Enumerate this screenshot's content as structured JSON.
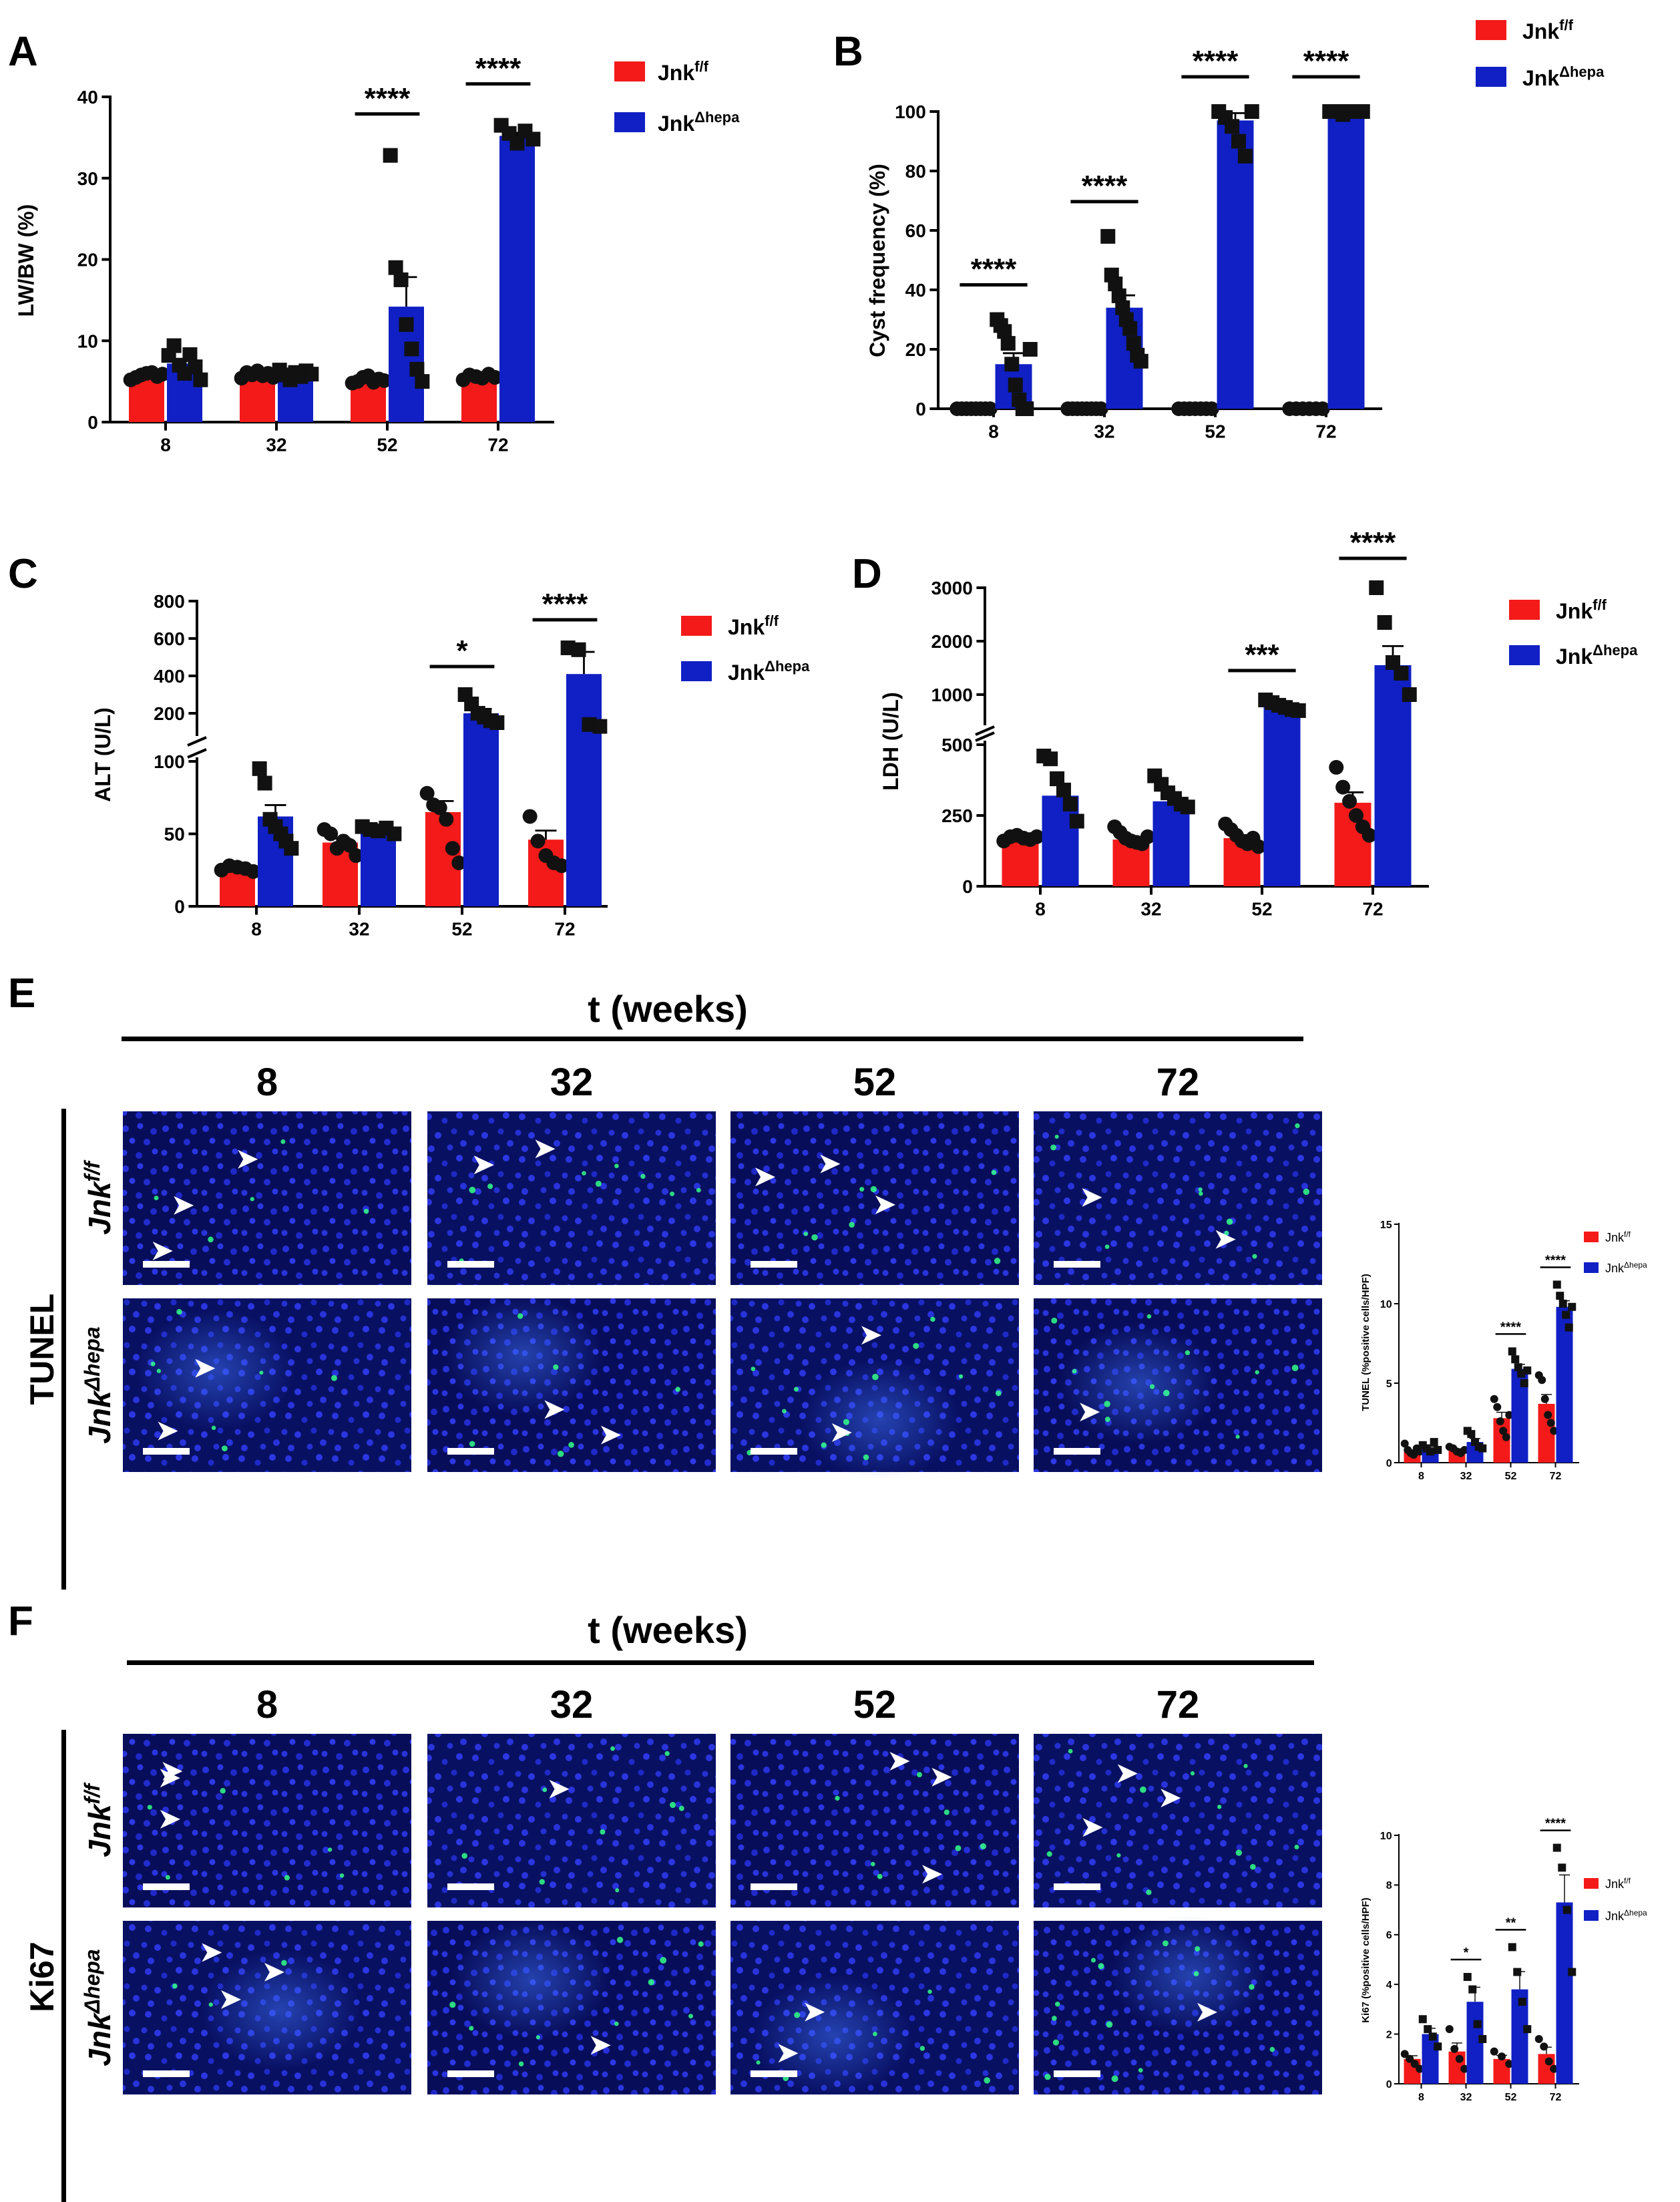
{
  "legend": {
    "control": "Jnk",
    "control_sup": "f/f",
    "mutant": "Jnk",
    "mutant_sup": "Δhepa"
  },
  "colors": {
    "control": "#f41a1a",
    "mutant": "#1020c4",
    "nuclei": "#1a1fd6",
    "positive": "#33ff88",
    "arrow": "#ffffff",
    "bar_scale": "#ffffff"
  },
  "chart_data": [
    {
      "panel": "A",
      "type": "bar",
      "ylabel": "LW/BW (%)",
      "xlabel": "",
      "categories": [
        "8",
        "32",
        "52",
        "72"
      ],
      "ylim": [
        0,
        40
      ],
      "yticks": [
        0,
        10,
        20,
        30,
        40
      ],
      "series": [
        {
          "name": "Jnk f/f",
          "values": [
            5.8,
            5.9,
            5.3,
            5.6
          ]
        },
        {
          "name": "Jnk Δhepa",
          "values": [
            7.2,
            5.9,
            14.2,
            35.2
          ]
        }
      ],
      "points": [
        [
          [
            5.2,
            5.5,
            5.8,
            6.0,
            6.1,
            5.6,
            5.9
          ],
          [
            8.2,
            9.4,
            7.0,
            6.0,
            8.3,
            6.8,
            5.2
          ]
        ],
        [
          [
            5.4,
            6.1,
            5.8,
            6.3,
            5.7,
            6.0,
            5.5
          ],
          [
            6.4,
            5.8,
            5.2,
            6.1,
            5.6,
            6.3,
            5.9
          ]
        ],
        [
          [
            4.8,
            5.0,
            5.5,
            5.7,
            4.9,
            5.3,
            5.1
          ],
          [
            32.8,
            19.0,
            17.5,
            12.0,
            9.0,
            6.5,
            5.0
          ]
        ],
        [
          [
            5.2,
            5.8,
            5.6,
            5.4,
            5.9,
            5.5
          ],
          [
            36.5,
            35.5,
            34.3,
            35.8,
            34.8
          ]
        ]
      ],
      "significance": [
        {
          "category": "52",
          "label": "****"
        },
        {
          "category": "72",
          "label": "****"
        }
      ]
    },
    {
      "panel": "B",
      "type": "bar",
      "ylabel": "Cyst frequency (%)",
      "xlabel": "",
      "categories": [
        "8",
        "32",
        "52",
        "72"
      ],
      "ylim": [
        0,
        100
      ],
      "yticks": [
        0,
        20,
        40,
        60,
        80,
        100
      ],
      "series": [
        {
          "name": "Jnk f/f",
          "values": [
            0,
            0,
            0,
            0
          ]
        },
        {
          "name": "Jnk Δhepa",
          "values": [
            15,
            34,
            97,
            99.5
          ]
        }
      ],
      "points": [
        [
          [
            0,
            0,
            0,
            0,
            0,
            0,
            0,
            0
          ],
          [
            30,
            28,
            26,
            22,
            15,
            8,
            3,
            0,
            0,
            20
          ]
        ],
        [
          [
            0,
            0,
            0,
            0,
            0,
            0,
            0,
            0
          ],
          [
            58,
            45,
            42,
            38,
            34,
            30,
            27,
            22,
            18,
            16
          ]
        ],
        [
          [
            0,
            0,
            0,
            0,
            0,
            0,
            0
          ],
          [
            100,
            98,
            95,
            90,
            85,
            100
          ]
        ],
        [
          [
            0,
            0,
            0,
            0,
            0,
            0
          ],
          [
            100,
            100,
            99,
            100,
            100,
            100
          ]
        ]
      ],
      "significance": [
        {
          "category": "8",
          "label": "****"
        },
        {
          "category": "32",
          "label": "****"
        },
        {
          "category": "52",
          "label": "****"
        },
        {
          "category": "72",
          "label": "****"
        }
      ]
    },
    {
      "panel": "C",
      "type": "bar",
      "ylabel": "ALT (U/L)",
      "xlabel": "",
      "categories": [
        "8",
        "32",
        "52",
        "72"
      ],
      "ylim_lower": [
        0,
        100
      ],
      "ylim_upper": [
        100,
        800
      ],
      "yticks": [
        0,
        50,
        100,
        200,
        400,
        600,
        800
      ],
      "series": [
        {
          "name": "Jnk f/f",
          "values": [
            26,
            44,
            65,
            46
          ]
        },
        {
          "name": "Jnk Δhepa",
          "values": [
            62,
            53,
            200,
            410
          ]
        }
      ],
      "points": [
        [
          [
            25,
            28,
            27,
            26,
            24
          ],
          [
            95,
            85,
            60,
            55,
            50,
            45,
            40
          ]
        ],
        [
          [
            53,
            50,
            40,
            45,
            42,
            35
          ],
          [
            55,
            53,
            52,
            54,
            50
          ]
        ],
        [
          [
            78,
            70,
            68,
            60,
            40,
            30
          ],
          [
            300,
            250,
            200,
            180,
            160,
            150
          ]
        ],
        [
          [
            62,
            45,
            35,
            30,
            28
          ],
          [
            550,
            540,
            140,
            130
          ]
        ]
      ],
      "significance": [
        {
          "category": "52",
          "label": "*"
        },
        {
          "category": "72",
          "label": "****"
        }
      ]
    },
    {
      "panel": "D",
      "type": "bar",
      "ylabel": "LDH (U/L)",
      "xlabel": "",
      "categories": [
        "8",
        "32",
        "52",
        "72"
      ],
      "ylim_lower": [
        0,
        500
      ],
      "ylim_upper": [
        500,
        3000
      ],
      "yticks": [
        0,
        250,
        500,
        1000,
        2000,
        3000
      ],
      "series": [
        {
          "name": "Jnk f/f",
          "values": [
            170,
            165,
            170,
            295
          ]
        },
        {
          "name": "Jnk Δhepa",
          "values": [
            320,
            300,
            780,
            1550
          ]
        }
      ],
      "points": [
        [
          [
            160,
            175,
            180,
            170,
            165,
            175
          ],
          [
            460,
            450,
            380,
            340,
            290,
            230
          ]
        ],
        [
          [
            210,
            190,
            170,
            160,
            155,
            150,
            175
          ],
          [
            390,
            360,
            330,
            310,
            290,
            280
          ]
        ],
        [
          [
            220,
            200,
            180,
            160,
            150,
            170,
            140
          ],
          [
            900,
            850,
            800,
            760,
            720,
            700
          ]
        ],
        [
          [
            420,
            350,
            300,
            250,
            210,
            180
          ],
          [
            3000,
            2350,
            1600,
            1400,
            1000
          ]
        ]
      ],
      "significance": [
        {
          "category": "52",
          "label": "***"
        },
        {
          "category": "72",
          "label": "****"
        }
      ]
    },
    {
      "panel": "E-quant",
      "type": "bar",
      "ylabel": "TUNEL (%positive cells/HPF)",
      "xlabel": "",
      "categories": [
        "8",
        "32",
        "52",
        "72"
      ],
      "ylim": [
        0,
        15
      ],
      "yticks": [
        0,
        5,
        10,
        15
      ],
      "series": [
        {
          "name": "Jnk f/f",
          "values": [
            0.7,
            0.8,
            2.8,
            3.7
          ]
        },
        {
          "name": "Jnk Δhepa",
          "values": [
            0.9,
            1.3,
            5.9,
            9.8
          ]
        }
      ],
      "points": [
        [
          [
            1.2,
            0.8,
            0.6,
            0.5,
            0.9,
            0.7
          ],
          [
            1.1,
            0.9,
            0.7,
            1.3,
            0.8
          ]
        ],
        [
          [
            1.0,
            0.9,
            0.7,
            0.6,
            0.8
          ],
          [
            2.0,
            1.8,
            1.3,
            1.0,
            0.9
          ]
        ],
        [
          [
            4.0,
            3.5,
            2.6,
            2.0,
            1.6,
            3.0
          ],
          [
            7.0,
            6.5,
            6.0,
            5.6,
            5.0,
            5.8
          ]
        ],
        [
          [
            5.5,
            5.2,
            4.0,
            3.0,
            2.5,
            2.0
          ],
          [
            11.2,
            10.5,
            10.0,
            9.3,
            8.5,
            9.8
          ]
        ]
      ],
      "significance": [
        {
          "category": "52",
          "label": "****"
        },
        {
          "category": "72",
          "label": "****"
        }
      ]
    },
    {
      "panel": "F-quant",
      "type": "bar",
      "ylabel": "Ki67 (%positive cells/HPF)",
      "xlabel": "",
      "categories": [
        "8",
        "32",
        "52",
        "72"
      ],
      "ylim": [
        0,
        10
      ],
      "yticks": [
        0,
        2,
        4,
        6,
        8,
        10
      ],
      "series": [
        {
          "name": "Jnk f/f",
          "values": [
            1.0,
            1.3,
            1.0,
            1.2
          ]
        },
        {
          "name": "Jnk Δhepa",
          "values": [
            2.0,
            3.3,
            3.8,
            7.3
          ]
        }
      ],
      "points": [
        [
          [
            1.2,
            1.0,
            0.8,
            0.6
          ],
          [
            2.6,
            2.2,
            1.9,
            1.5
          ]
        ],
        [
          [
            2.2,
            1.4,
            1.0,
            0.6
          ],
          [
            4.3,
            3.8,
            2.4,
            1.8
          ]
        ],
        [
          [
            1.3,
            1.1,
            0.8
          ],
          [
            5.5,
            4.5,
            3.3,
            2.2
          ]
        ],
        [
          [
            1.8,
            1.5,
            0.9,
            0.6
          ],
          [
            9.5,
            8.7,
            7.0,
            4.5
          ]
        ]
      ],
      "significance": [
        {
          "category": "32",
          "label": "*"
        },
        {
          "category": "52",
          "label": "**"
        },
        {
          "category": "72",
          "label": "****"
        }
      ]
    }
  ],
  "micro": {
    "E": {
      "panel_label": "E",
      "time_label": "t (weeks)",
      "stain": "TUNEL",
      "columns": [
        "8",
        "32",
        "52",
        "72"
      ]
    },
    "F": {
      "panel_label": "F",
      "time_label": "t (weeks)",
      "stain": "Ki67",
      "columns": [
        "8",
        "32",
        "52",
        "72"
      ]
    },
    "rows": [
      {
        "gene": "Jnk",
        "sup": "f/f"
      },
      {
        "gene": "Jnk",
        "sup": "Δhepa"
      }
    ]
  }
}
